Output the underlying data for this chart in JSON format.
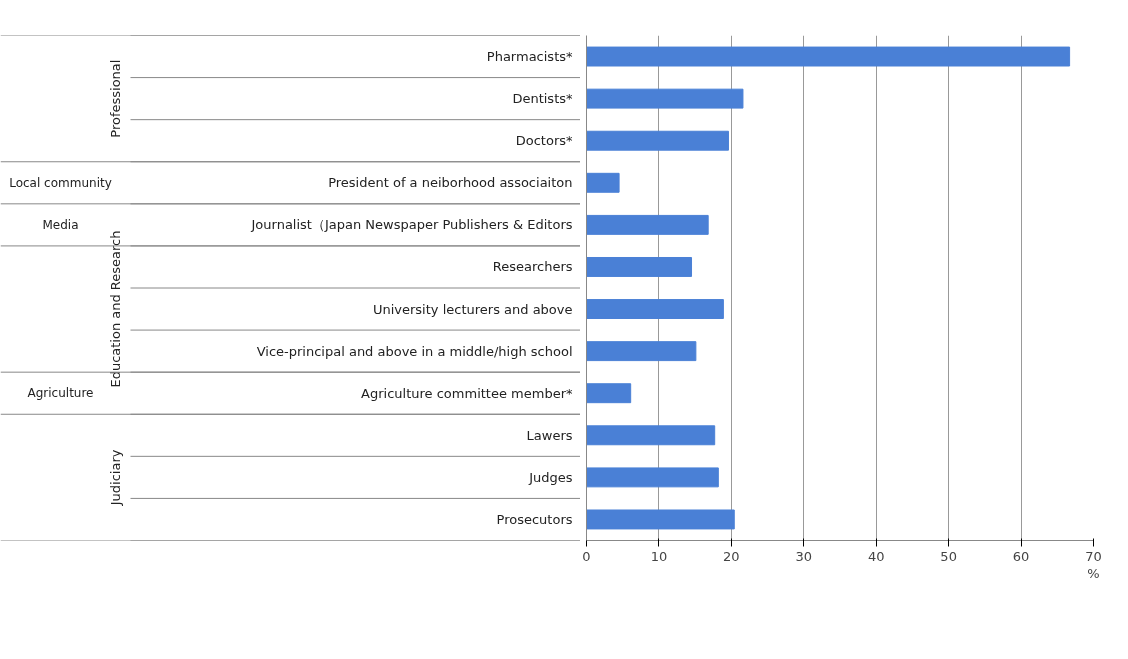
{
  "chart_data": {
    "type": "bar",
    "orientation": "horizontal",
    "xlabel": "%",
    "categories": [
      "Pharmacists*",
      "Dentists*",
      "Doctors*",
      "President of a neiborhood associaiton",
      "Journalist（Japan Newspaper Publishers & Editors",
      "Researchers",
      "University lecturers and above",
      "Vice-principal and above in a middle/high school",
      "Agriculture committee member*",
      "Lawers",
      "Judges",
      "Prosecutors"
    ],
    "values": [
      66.7,
      21.6,
      19.6,
      4.5,
      16.8,
      14.5,
      18.9,
      15.1,
      6.1,
      17.7,
      18.2,
      20.4
    ],
    "color": "#4a80d6",
    "xlim": [
      0,
      70
    ],
    "xticks": [
      0,
      10,
      20,
      30,
      40,
      50,
      60,
      70
    ],
    "grid": "x",
    "annotations": [
      "Professional",
      "Local community",
      "Media",
      "Education and Research",
      "Agriculture",
      "Judiciary"
    ]
  }
}
